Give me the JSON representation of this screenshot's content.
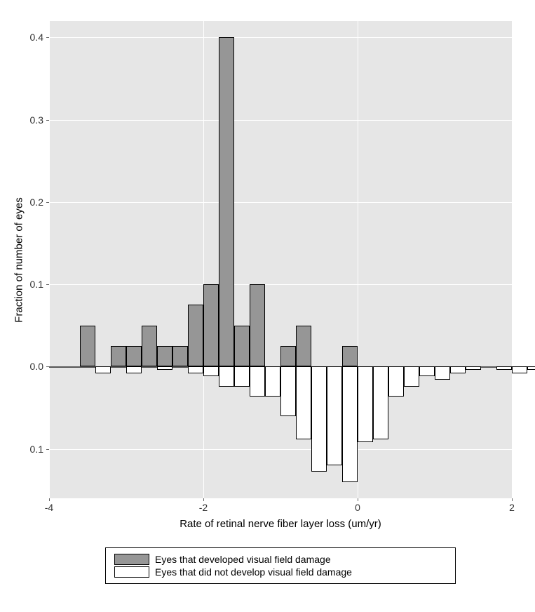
{
  "chart": {
    "type": "mirrored-histogram",
    "background_color": "#e6e6e6",
    "grid_color": "#ffffff",
    "axis_text_color": "#333333",
    "xlabel": "Rate of retinal nerve fiber layer loss (um/yr)",
    "ylabel": "Fraction of number of eyes",
    "label_fontsize": 15,
    "tick_fontsize": 14,
    "xlim": [
      -4,
      2
    ],
    "x_ticks": [
      -4,
      -2,
      0,
      2
    ],
    "y_ticks_up": [
      0.0,
      0.1,
      0.2,
      0.3,
      0.4
    ],
    "y_ticks_down": [
      0.1
    ],
    "y_max_up": 0.42,
    "y_max_down": 0.16,
    "bin_width": 0.2,
    "series_up": {
      "label": "Eyes that developed visual field damage",
      "fill": "#969696",
      "border": "#000000",
      "bins": [
        {
          "x": -3.6,
          "y": 0.05
        },
        {
          "x": -3.4,
          "y": 0.0
        },
        {
          "x": -3.2,
          "y": 0.025
        },
        {
          "x": -3.0,
          "y": 0.025
        },
        {
          "x": -2.8,
          "y": 0.05
        },
        {
          "x": -2.6,
          "y": 0.025
        },
        {
          "x": -2.4,
          "y": 0.025
        },
        {
          "x": -2.2,
          "y": 0.075
        },
        {
          "x": -2.0,
          "y": 0.1
        },
        {
          "x": -1.8,
          "y": 0.4
        },
        {
          "x": -1.6,
          "y": 0.05
        },
        {
          "x": -1.4,
          "y": 0.1
        },
        {
          "x": -1.2,
          "y": 0.0
        },
        {
          "x": -1.0,
          "y": 0.025
        },
        {
          "x": -0.8,
          "y": 0.05
        },
        {
          "x": -0.6,
          "y": 0.0
        },
        {
          "x": -0.4,
          "y": 0.0
        },
        {
          "x": -0.2,
          "y": 0.025
        }
      ]
    },
    "series_down": {
      "label": "Eyes that did not develop visual field damage",
      "fill": "#ffffff",
      "border": "#000000",
      "bins": [
        {
          "x": -3.4,
          "y": 0.008
        },
        {
          "x": -3.2,
          "y": 0.0
        },
        {
          "x": -3.0,
          "y": 0.008
        },
        {
          "x": -2.8,
          "y": 0.0
        },
        {
          "x": -2.6,
          "y": 0.004
        },
        {
          "x": -2.4,
          "y": 0.0
        },
        {
          "x": -2.2,
          "y": 0.008
        },
        {
          "x": -2.0,
          "y": 0.012
        },
        {
          "x": -1.8,
          "y": 0.024
        },
        {
          "x": -1.6,
          "y": 0.024
        },
        {
          "x": -1.4,
          "y": 0.036
        },
        {
          "x": -1.2,
          "y": 0.036
        },
        {
          "x": -1.0,
          "y": 0.06
        },
        {
          "x": -0.8,
          "y": 0.088
        },
        {
          "x": -0.6,
          "y": 0.128
        },
        {
          "x": -0.4,
          "y": 0.12
        },
        {
          "x": -0.2,
          "y": 0.14
        },
        {
          "x": 0.0,
          "y": 0.092
        },
        {
          "x": 0.2,
          "y": 0.088
        },
        {
          "x": 0.4,
          "y": 0.036
        },
        {
          "x": 0.6,
          "y": 0.024
        },
        {
          "x": 0.8,
          "y": 0.012
        },
        {
          "x": 1.0,
          "y": 0.016
        },
        {
          "x": 1.2,
          "y": 0.008
        },
        {
          "x": 1.4,
          "y": 0.004
        },
        {
          "x": 1.6,
          "y": 0.0
        },
        {
          "x": 1.8,
          "y": 0.004
        },
        {
          "x": 2.0,
          "y": 0.008
        },
        {
          "x": 2.2,
          "y": 0.004
        }
      ]
    },
    "legend": {
      "border_color": "#000000",
      "swatch_width": 50,
      "swatch_height": 16
    }
  }
}
